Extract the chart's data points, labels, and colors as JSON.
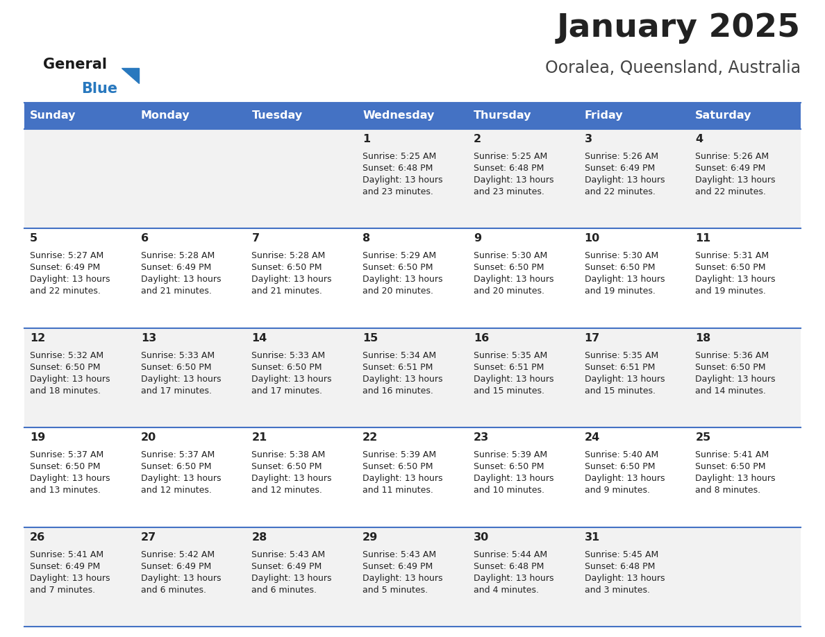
{
  "title": "January 2025",
  "subtitle": "Ooralea, Queensland, Australia",
  "header_color": "#4472C4",
  "header_text_color": "#FFFFFF",
  "day_names": [
    "Sunday",
    "Monday",
    "Tuesday",
    "Wednesday",
    "Thursday",
    "Friday",
    "Saturday"
  ],
  "bg_color": "#FFFFFF",
  "cell_bg_even": "#F2F2F2",
  "cell_bg_odd": "#FFFFFF",
  "separator_color": "#4472C4",
  "text_color": "#222222",
  "title_color": "#222222",
  "subtitle_color": "#444444",
  "logo_general_color": "#1a1a1a",
  "logo_blue_color": "#2878BE",
  "logo_triangle_color": "#2878BE",
  "days": [
    {
      "date": 1,
      "col": 3,
      "row": 0,
      "sunrise": "5:25 AM",
      "sunset": "6:48 PM",
      "daylight": "13 hours and 23 minutes."
    },
    {
      "date": 2,
      "col": 4,
      "row": 0,
      "sunrise": "5:25 AM",
      "sunset": "6:48 PM",
      "daylight": "13 hours and 23 minutes."
    },
    {
      "date": 3,
      "col": 5,
      "row": 0,
      "sunrise": "5:26 AM",
      "sunset": "6:49 PM",
      "daylight": "13 hours and 22 minutes."
    },
    {
      "date": 4,
      "col": 6,
      "row": 0,
      "sunrise": "5:26 AM",
      "sunset": "6:49 PM",
      "daylight": "13 hours and 22 minutes."
    },
    {
      "date": 5,
      "col": 0,
      "row": 1,
      "sunrise": "5:27 AM",
      "sunset": "6:49 PM",
      "daylight": "13 hours and 22 minutes."
    },
    {
      "date": 6,
      "col": 1,
      "row": 1,
      "sunrise": "5:28 AM",
      "sunset": "6:49 PM",
      "daylight": "13 hours and 21 minutes."
    },
    {
      "date": 7,
      "col": 2,
      "row": 1,
      "sunrise": "5:28 AM",
      "sunset": "6:50 PM",
      "daylight": "13 hours and 21 minutes."
    },
    {
      "date": 8,
      "col": 3,
      "row": 1,
      "sunrise": "5:29 AM",
      "sunset": "6:50 PM",
      "daylight": "13 hours and 20 minutes."
    },
    {
      "date": 9,
      "col": 4,
      "row": 1,
      "sunrise": "5:30 AM",
      "sunset": "6:50 PM",
      "daylight": "13 hours and 20 minutes."
    },
    {
      "date": 10,
      "col": 5,
      "row": 1,
      "sunrise": "5:30 AM",
      "sunset": "6:50 PM",
      "daylight": "13 hours and 19 minutes."
    },
    {
      "date": 11,
      "col": 6,
      "row": 1,
      "sunrise": "5:31 AM",
      "sunset": "6:50 PM",
      "daylight": "13 hours and 19 minutes."
    },
    {
      "date": 12,
      "col": 0,
      "row": 2,
      "sunrise": "5:32 AM",
      "sunset": "6:50 PM",
      "daylight": "13 hours and 18 minutes."
    },
    {
      "date": 13,
      "col": 1,
      "row": 2,
      "sunrise": "5:33 AM",
      "sunset": "6:50 PM",
      "daylight": "13 hours and 17 minutes."
    },
    {
      "date": 14,
      "col": 2,
      "row": 2,
      "sunrise": "5:33 AM",
      "sunset": "6:50 PM",
      "daylight": "13 hours and 17 minutes."
    },
    {
      "date": 15,
      "col": 3,
      "row": 2,
      "sunrise": "5:34 AM",
      "sunset": "6:51 PM",
      "daylight": "13 hours and 16 minutes."
    },
    {
      "date": 16,
      "col": 4,
      "row": 2,
      "sunrise": "5:35 AM",
      "sunset": "6:51 PM",
      "daylight": "13 hours and 15 minutes."
    },
    {
      "date": 17,
      "col": 5,
      "row": 2,
      "sunrise": "5:35 AM",
      "sunset": "6:51 PM",
      "daylight": "13 hours and 15 minutes."
    },
    {
      "date": 18,
      "col": 6,
      "row": 2,
      "sunrise": "5:36 AM",
      "sunset": "6:50 PM",
      "daylight": "13 hours and 14 minutes."
    },
    {
      "date": 19,
      "col": 0,
      "row": 3,
      "sunrise": "5:37 AM",
      "sunset": "6:50 PM",
      "daylight": "13 hours and 13 minutes."
    },
    {
      "date": 20,
      "col": 1,
      "row": 3,
      "sunrise": "5:37 AM",
      "sunset": "6:50 PM",
      "daylight": "13 hours and 12 minutes."
    },
    {
      "date": 21,
      "col": 2,
      "row": 3,
      "sunrise": "5:38 AM",
      "sunset": "6:50 PM",
      "daylight": "13 hours and 12 minutes."
    },
    {
      "date": 22,
      "col": 3,
      "row": 3,
      "sunrise": "5:39 AM",
      "sunset": "6:50 PM",
      "daylight": "13 hours and 11 minutes."
    },
    {
      "date": 23,
      "col": 4,
      "row": 3,
      "sunrise": "5:39 AM",
      "sunset": "6:50 PM",
      "daylight": "13 hours and 10 minutes."
    },
    {
      "date": 24,
      "col": 5,
      "row": 3,
      "sunrise": "5:40 AM",
      "sunset": "6:50 PM",
      "daylight": "13 hours and 9 minutes."
    },
    {
      "date": 25,
      "col": 6,
      "row": 3,
      "sunrise": "5:41 AM",
      "sunset": "6:50 PM",
      "daylight": "13 hours and 8 minutes."
    },
    {
      "date": 26,
      "col": 0,
      "row": 4,
      "sunrise": "5:41 AM",
      "sunset": "6:49 PM",
      "daylight": "13 hours and 7 minutes."
    },
    {
      "date": 27,
      "col": 1,
      "row": 4,
      "sunrise": "5:42 AM",
      "sunset": "6:49 PM",
      "daylight": "13 hours and 6 minutes."
    },
    {
      "date": 28,
      "col": 2,
      "row": 4,
      "sunrise": "5:43 AM",
      "sunset": "6:49 PM",
      "daylight": "13 hours and 6 minutes."
    },
    {
      "date": 29,
      "col": 3,
      "row": 4,
      "sunrise": "5:43 AM",
      "sunset": "6:49 PM",
      "daylight": "13 hours and 5 minutes."
    },
    {
      "date": 30,
      "col": 4,
      "row": 4,
      "sunrise": "5:44 AM",
      "sunset": "6:48 PM",
      "daylight": "13 hours and 4 minutes."
    },
    {
      "date": 31,
      "col": 5,
      "row": 4,
      "sunrise": "5:45 AM",
      "sunset": "6:48 PM",
      "daylight": "13 hours and 3 minutes."
    }
  ]
}
